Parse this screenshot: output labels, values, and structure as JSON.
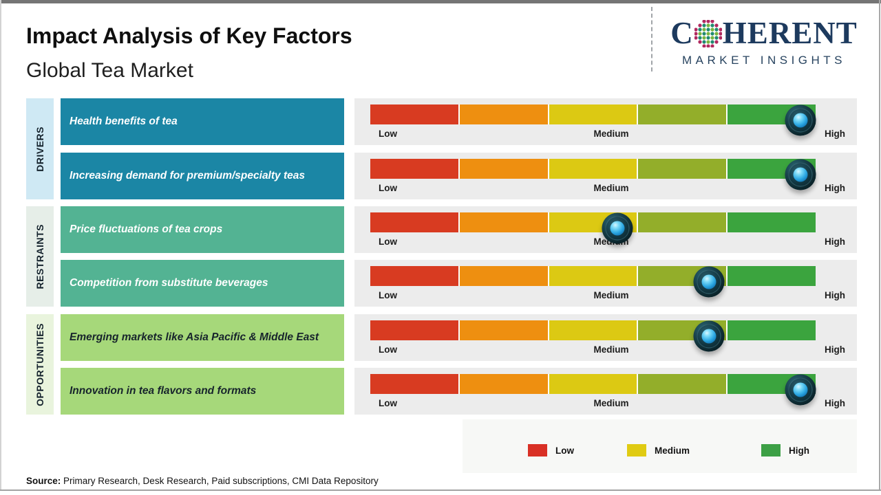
{
  "header": {
    "title": "Impact Analysis of Key Factors",
    "subtitle": "Global Tea Market",
    "logo": {
      "brand_c": "C",
      "brand_rest": "HERENT",
      "tagline": "MARKET INSIGHTS",
      "brand_color": "#1d3a5e",
      "globe_dot_colors": {
        "outer": "#b1295f",
        "teal": "#1f8a70",
        "green": "#79b53f"
      }
    }
  },
  "groups": [
    {
      "label": "DRIVERS",
      "sidebar_color": "#cfe9f4",
      "box_color": "#1b86a5",
      "box_text_color": "#ffffff"
    },
    {
      "label": "RESTRAINTS",
      "sidebar_color": "#e6eee8",
      "box_color": "#53b393",
      "box_text_color": "#ffffff"
    },
    {
      "label": "OPPORTUNITIES",
      "sidebar_color": "#e9f4dd",
      "box_color": "#a6d87a",
      "box_text_color": "#17242c"
    }
  ],
  "chart_data": {
    "type": "bar",
    "title": "Impact Analysis of Key Factors",
    "subtitle": "Global Tea Market",
    "scale": {
      "low": "Low",
      "medium": "Medium",
      "high": "High",
      "range": [
        0,
        100
      ],
      "segment_colors": [
        "#d83b21",
        "#ee8f10",
        "#dcc913",
        "#93ae2a",
        "#3ba43e"
      ]
    },
    "series": [
      {
        "group": "Drivers",
        "factor": "Health benefits of tea",
        "impact_percent": 93,
        "impact_level": "High"
      },
      {
        "group": "Drivers",
        "factor": "Increasing demand for premium/specialty teas",
        "impact_percent": 93,
        "impact_level": "High"
      },
      {
        "group": "Restraints",
        "factor": "Price fluctuations of tea crops",
        "impact_percent": 52,
        "impact_level": "Medium"
      },
      {
        "group": "Restraints",
        "factor": "Competition from substitute beverages",
        "impact_percent": 72.5,
        "impact_level": "Medium-High"
      },
      {
        "group": "Opportunities",
        "factor": "Emerging markets like Asia Pacific & Middle East",
        "impact_percent": 72.5,
        "impact_level": "Medium-High"
      },
      {
        "group": "Opportunities",
        "factor": "Innovation in tea flavors and formats",
        "impact_percent": 93,
        "impact_level": "High"
      }
    ],
    "legend": [
      {
        "label": "Low",
        "color": "#d93025"
      },
      {
        "label": "Medium",
        "color": "#e0cb12"
      },
      {
        "label": "High",
        "color": "#3da046"
      }
    ],
    "legend_position": "bottom-right"
  },
  "source": {
    "prefix": "Source:",
    "text": "Primary Research, Desk Research, Paid subscriptions, CMI Data Repository"
  }
}
